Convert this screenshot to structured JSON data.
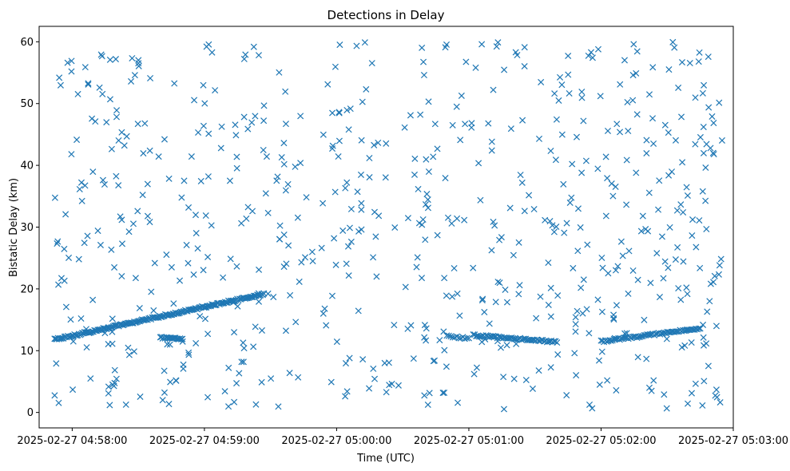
{
  "chart_data": {
    "type": "scatter",
    "title": "Detections in Delay",
    "xlabel": "Time (UTC)",
    "ylabel": "Bistatic Delay (km)",
    "x_ticks": [
      "2025-02-27 04:58:00",
      "2025-02-27 04:59:00",
      "2025-02-27 05:00:00",
      "2025-02-27 05:01:00",
      "2025-02-27 05:02:00",
      "2025-02-27 05:03:00"
    ],
    "y_ticks": [
      "0",
      "10",
      "20",
      "30",
      "40",
      "50",
      "60"
    ],
    "xlim": [
      "2025-02-27 04:57:45",
      "2025-02-27 05:03:00"
    ],
    "ylim": [
      -2.5,
      62.5
    ],
    "marker": "x",
    "color": "#1f77b4",
    "grid": false,
    "tracks": [
      {
        "start": "2025-02-27 04:57:52",
        "end": "2025-02-27 04:59:27",
        "delay_start": 11.8,
        "delay_end": 19.2,
        "points": 190
      },
      {
        "start": "2025-02-27 04:58:40",
        "end": "2025-02-27 04:58:50",
        "delay_start": 12.1,
        "delay_end": 11.9,
        "points": 20
      },
      {
        "start": "2025-02-27 05:00:50",
        "end": "2025-02-27 05:01:00",
        "delay_start": 12.3,
        "delay_end": 12.0,
        "points": 12
      },
      {
        "start": "2025-02-27 05:01:02",
        "end": "2025-02-27 05:01:40",
        "delay_start": 12.5,
        "delay_end": 11.4,
        "points": 60
      },
      {
        "start": "2025-02-27 05:02:00",
        "end": "2025-02-27 05:02:45",
        "delay_start": 11.5,
        "delay_end": 13.6,
        "points": 70
      }
    ],
    "clutter": {
      "start": "2025-02-27 04:57:52",
      "end": "2025-02-27 05:02:55",
      "delay_range": [
        0.5,
        60
      ],
      "points": 650,
      "gap": {
        "start": "2025-02-27 04:59:40",
        "end": "2025-02-27 04:59:58",
        "points": 20
      }
    }
  }
}
